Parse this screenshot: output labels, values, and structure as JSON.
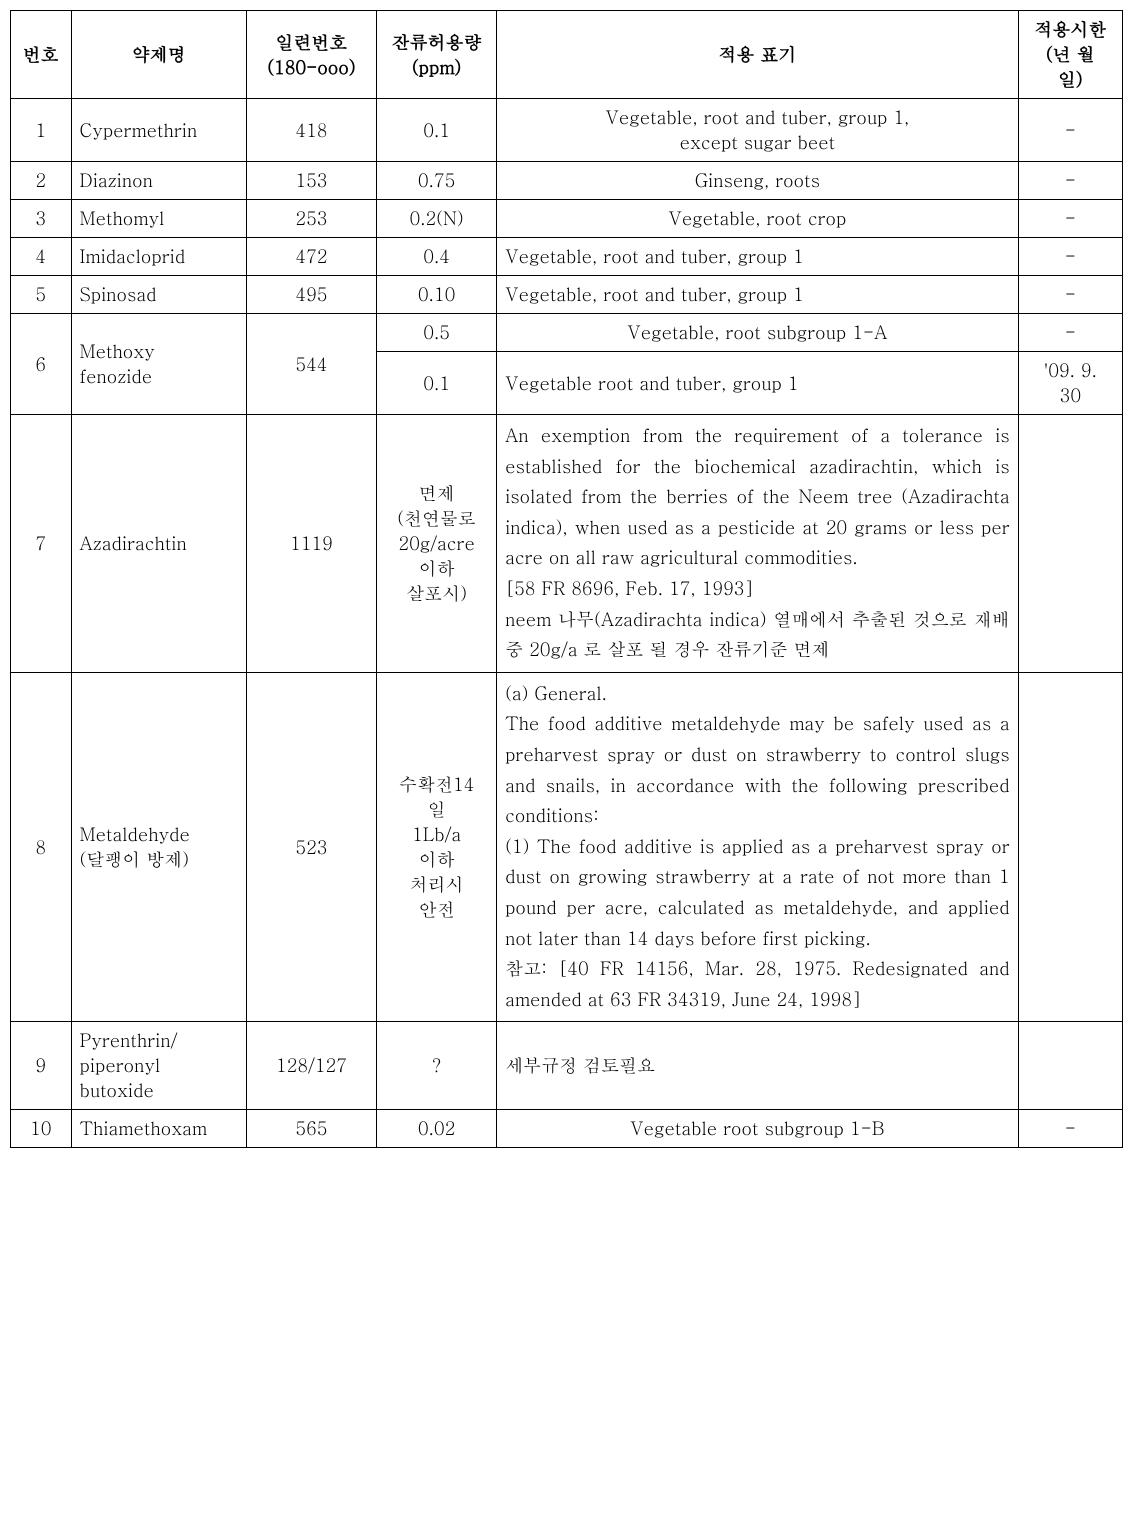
{
  "table": {
    "headers": {
      "no": "번호",
      "name": "약제명",
      "serial": "일련번호\n(180-ooo)",
      "tolerance": "잔류허용량\n(ppm)",
      "application": "적용 표기",
      "deadline": "적용시한\n(년 월\n일)"
    },
    "rows": {
      "r1": {
        "no": "1",
        "name": "Cypermethrin",
        "serial": "418",
        "tol": "0.1",
        "app": "Vegetable, root and tuber, group 1,\nexcept sugar beet",
        "dl": "-"
      },
      "r2": {
        "no": "2",
        "name": "Diazinon",
        "serial": "153",
        "tol": "0.75",
        "app": "Ginseng, roots",
        "dl": "-"
      },
      "r3": {
        "no": "3",
        "name": "Methomyl",
        "serial": "253",
        "tol": "0.2(N)",
        "app": "Vegetable, root crop",
        "dl": "-"
      },
      "r4": {
        "no": "4",
        "name": "Imidacloprid",
        "serial": "472",
        "tol": "0.4",
        "app": "Vegetable, root and tuber, group 1",
        "dl": "-"
      },
      "r5": {
        "no": "5",
        "name": "Spinosad",
        "serial": "495",
        "tol": "0.10",
        "app": "Vegetable, root and tuber, group 1",
        "dl": "-"
      },
      "r6": {
        "no": "6",
        "name": "Methoxy\nfenozide",
        "serial": "544",
        "tolA": "0.5",
        "appA": "Vegetable, root subgroup 1-A",
        "dlA": "-",
        "tolB": "0.1",
        "appB": "Vegetable root and tuber, group 1",
        "dlB": "'09. 9.\n30"
      },
      "r7": {
        "no": "7",
        "name": "Azadirachtin",
        "serial": "1119",
        "tol": "면제\n(천연물로\n20g/acre\n이하\n살포시)",
        "app": "An exemption from the requirement of a tolerance is established for the biochemical azadirachtin, which is isolated from the berries of the Neem tree (Azadirachta indica), when used as a pesticide at 20 grams or less per acre on all raw agricultural commodities.\n[58 FR 8696, Feb. 17, 1993]\nneem 나무(Azadirachta indica) 열매에서 추출된 것으로 재배 중 20g/a 로 살포 될 경우 잔류기준 면제",
        "dl": ""
      },
      "r8": {
        "no": "8",
        "name": "Metaldehyde\n(달팽이 방제)",
        "serial": "523",
        "tol": "수확전14\n일\n1Lb/a\n이하\n처리시\n안전",
        "app": " (a) General.\nThe food additive metaldehyde may be safely used as a preharvest spray or dust on strawberry to control slugs and snails, in accordance with the following  prescribed conditions:\n(1) The food additive is applied as a preharvest spray or dust on growing strawberry at a rate of not more than 1 pound per acre, calculated as metaldehyde, and applied not later than 14 days before first picking.\n참고:  [40 FR 14156, Mar. 28, 1975. Redesignated and amended at 63 FR 34319, June 24, 1998]",
        "dl": ""
      },
      "r9": {
        "no": "9",
        "name": "Pyrenthrin/\npiperonyl\nbutoxide",
        "serial": "128/127",
        "tol": "?",
        "app": "세부규정 검토필요",
        "dl": ""
      },
      "r10": {
        "no": "10",
        "name": "Thiamethoxam",
        "serial": "565",
        "tol": "0.02",
        "app": "Vegetable root subgroup 1-B",
        "dl": "-"
      }
    }
  }
}
